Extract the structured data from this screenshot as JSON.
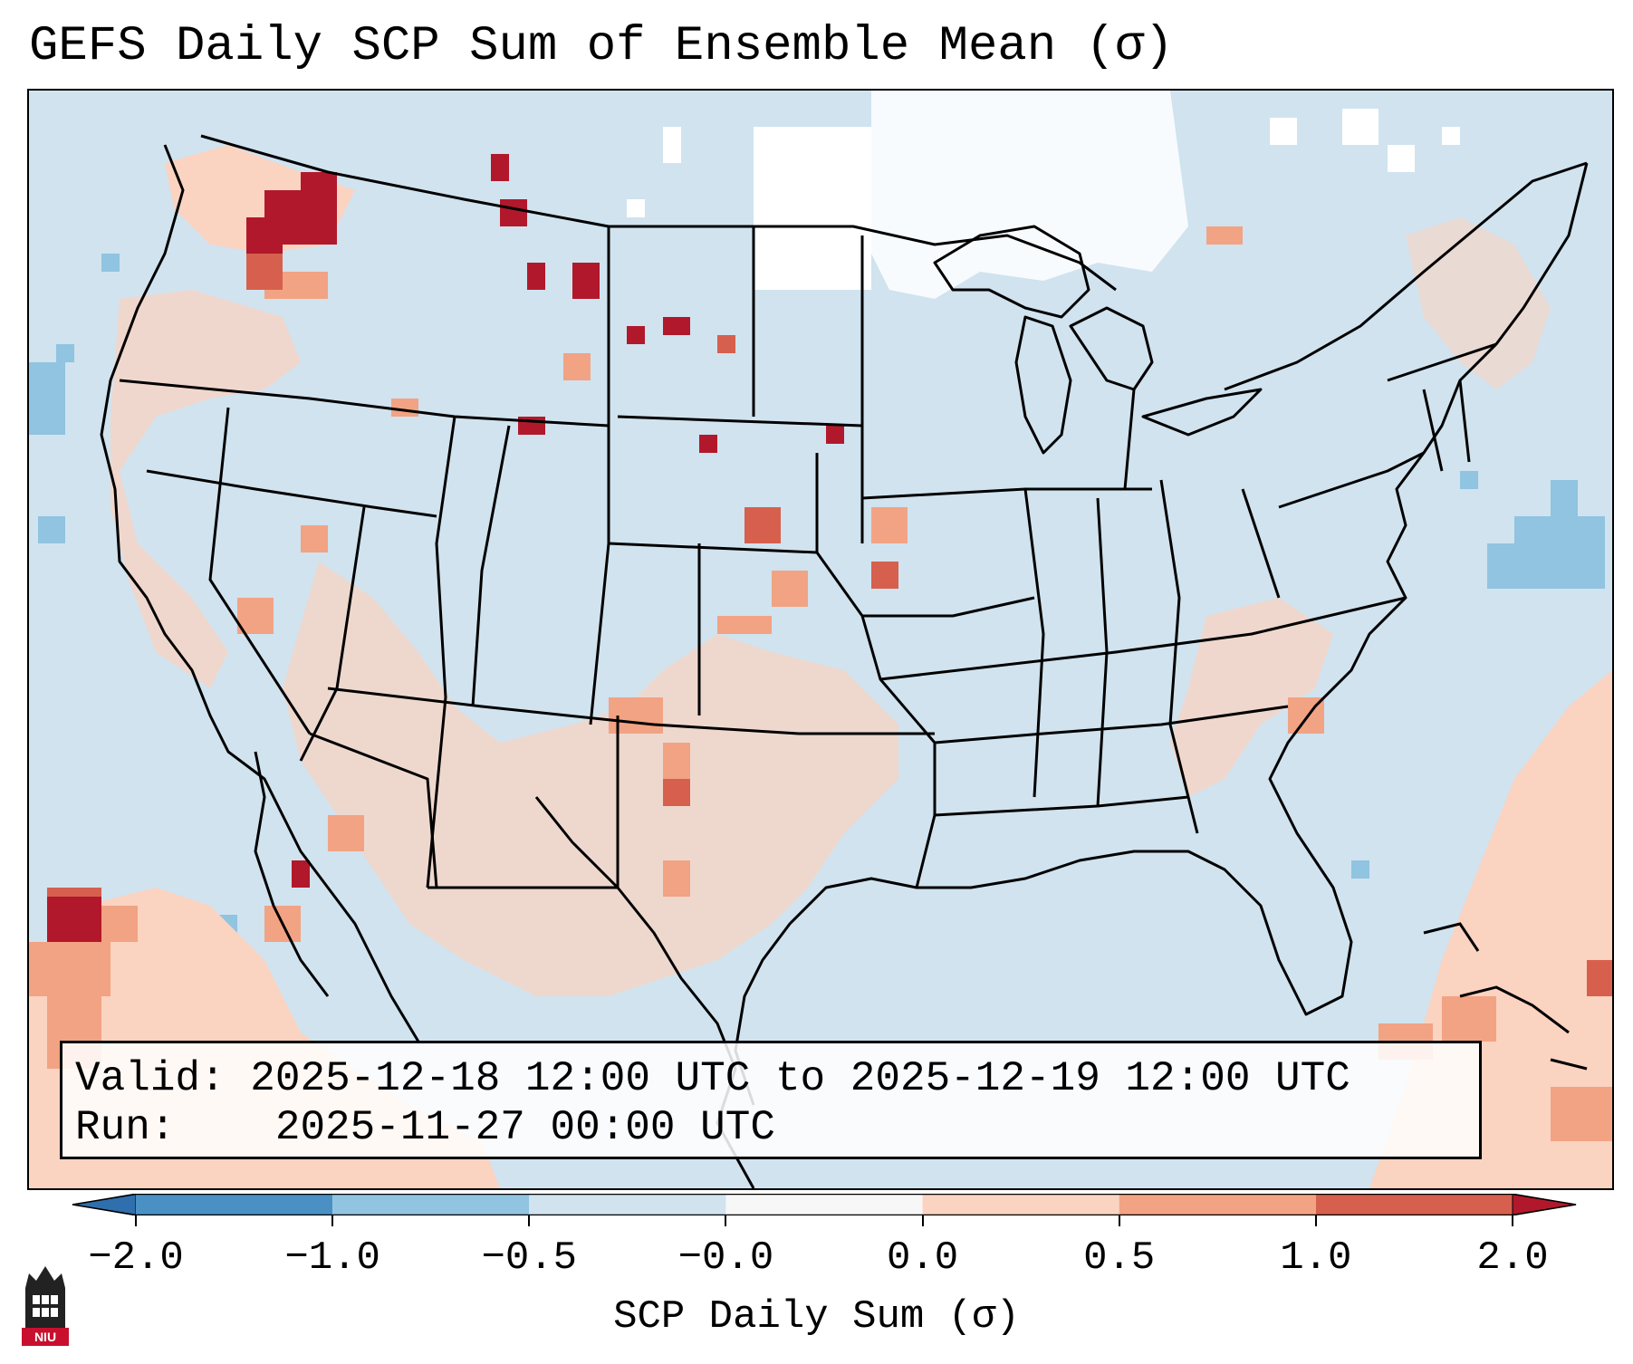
{
  "title": "GEFS Daily SCP Sum of Ensemble Mean (σ)",
  "info": {
    "valid_label": "Valid:",
    "valid_value": "2025-12-18 12:00 UTC to 2025-12-19 12:00 UTC",
    "run_label": "Run:",
    "run_value": "2025-11-27 00:00 UTC"
  },
  "colorbar": {
    "title": "SCP Daily Sum (σ)",
    "ticks": [
      "−2.0",
      "−1.0",
      "−0.5",
      "−0.0",
      "0.0",
      "0.5",
      "1.0",
      "2.0"
    ],
    "bins": [
      {
        "from": -2.0,
        "to": -1.0,
        "color": "#4a90c4"
      },
      {
        "from": -1.0,
        "to": -0.5,
        "color": "#90c4e0"
      },
      {
        "from": -0.5,
        "to": -0.0,
        "color": "#d0e3ef"
      },
      {
        "from": -0.0,
        "to": 0.0,
        "color": "#f7f7f7"
      },
      {
        "from": 0.0,
        "to": 0.5,
        "color": "#fbd3c1"
      },
      {
        "from": 0.5,
        "to": 1.0,
        "color": "#f2a383"
      },
      {
        "from": 1.0,
        "to": 2.0,
        "color": "#d6604d"
      }
    ],
    "extend_low_color": "#2f6fad",
    "extend_high_color": "#b2182b"
  },
  "colors": {
    "background_near_zero": "#d0e3ef",
    "no_data_white": "#ffffff",
    "positive_light": "#fbd3c1",
    "positive_mid": "#f2a383",
    "positive_strong": "#d6604d",
    "positive_extreme": "#b2182b",
    "negative_mid": "#90c4e0",
    "boundaries": "#000000"
  },
  "logo": {
    "text": "NIU",
    "name": "niu-logo"
  }
}
